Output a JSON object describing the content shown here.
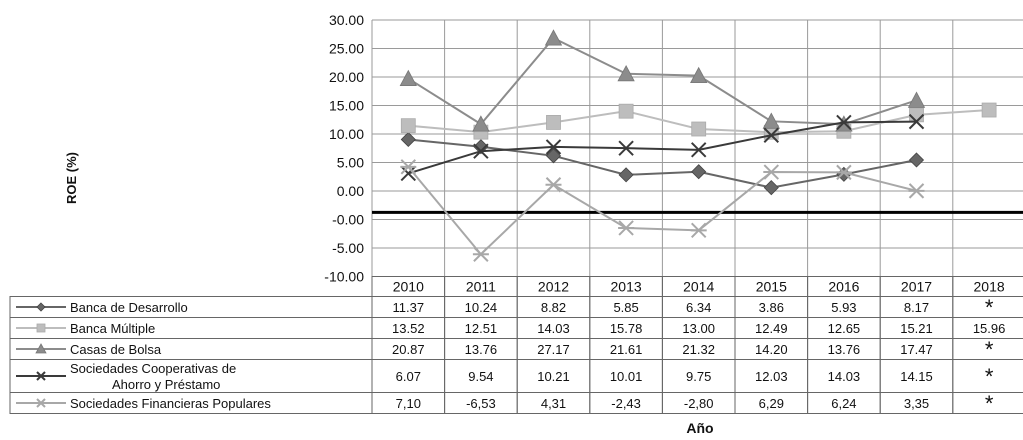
{
  "chart_data": {
    "type": "line",
    "title": "",
    "xlabel": "Año",
    "ylabel": "ROE (%)",
    "ylim": [
      -10,
      30
    ],
    "yticks": [
      "30.00",
      "25.00",
      "20.00",
      "15.00",
      "10.00",
      "5.00",
      "0.00",
      "-0.00",
      "-5.00",
      "-10.00"
    ],
    "categories": [
      "2010",
      "2011",
      "2012",
      "2013",
      "2014",
      "2015",
      "2016",
      "2017",
      "2018"
    ],
    "grid": true,
    "legend": "data-table-left",
    "series": [
      {
        "name": "Banca de Desarrollo",
        "name_line2": "",
        "marker": "diamond",
        "color": "#666666",
        "values": [
          11.37,
          10.24,
          8.82,
          5.85,
          6.34,
          3.86,
          5.93,
          8.17,
          null
        ],
        "labels": [
          "11.37",
          "10.24",
          "8.82",
          "5.85",
          "6.34",
          "3.86",
          "5.93",
          "8.17",
          "*"
        ]
      },
      {
        "name": "Banca Múltiple",
        "name_line2": "",
        "marker": "square",
        "color": "#bdbdbd",
        "values": [
          13.52,
          12.51,
          14.03,
          15.78,
          13.0,
          12.49,
          12.65,
          15.21,
          15.96
        ],
        "labels": [
          "13.52",
          "12.51",
          "14.03",
          "15.78",
          "13.00",
          "12.49",
          "12.65",
          "15.21",
          "15.96"
        ]
      },
      {
        "name": "Casas de Bolsa",
        "name_line2": "",
        "marker": "triangle",
        "color": "#8c8c8c",
        "values": [
          20.87,
          13.76,
          27.17,
          21.61,
          21.32,
          14.2,
          13.76,
          17.47,
          null
        ],
        "labels": [
          "20.87",
          "13.76",
          "27.17",
          "21.61",
          "21.32",
          "14.20",
          "13.76",
          "17.47",
          "*"
        ]
      },
      {
        "name": "Sociedades Cooperativas de",
        "name_line2": "Ahorro y Préstamo",
        "marker": "x",
        "color": "#3a3a3a",
        "values": [
          6.07,
          9.54,
          10.21,
          10.01,
          9.75,
          12.03,
          14.03,
          14.15,
          null
        ],
        "labels": [
          "6.07",
          "9.54",
          "10.21",
          "10.01",
          "9.75",
          "12.03",
          "14.03",
          "14.15",
          "*"
        ]
      },
      {
        "name": "Sociedades Financieras Populares",
        "name_line2": "",
        "marker": "asterisk",
        "color": "#a8a8a8",
        "values": [
          7.1,
          -6.53,
          4.31,
          -2.43,
          -2.8,
          6.29,
          6.24,
          3.35,
          null
        ],
        "labels": [
          "7,10",
          "-6,53",
          "4,31",
          "-2,43",
          "-2,80",
          "6,29",
          "6,24",
          "3,35",
          "*"
        ]
      }
    ]
  }
}
